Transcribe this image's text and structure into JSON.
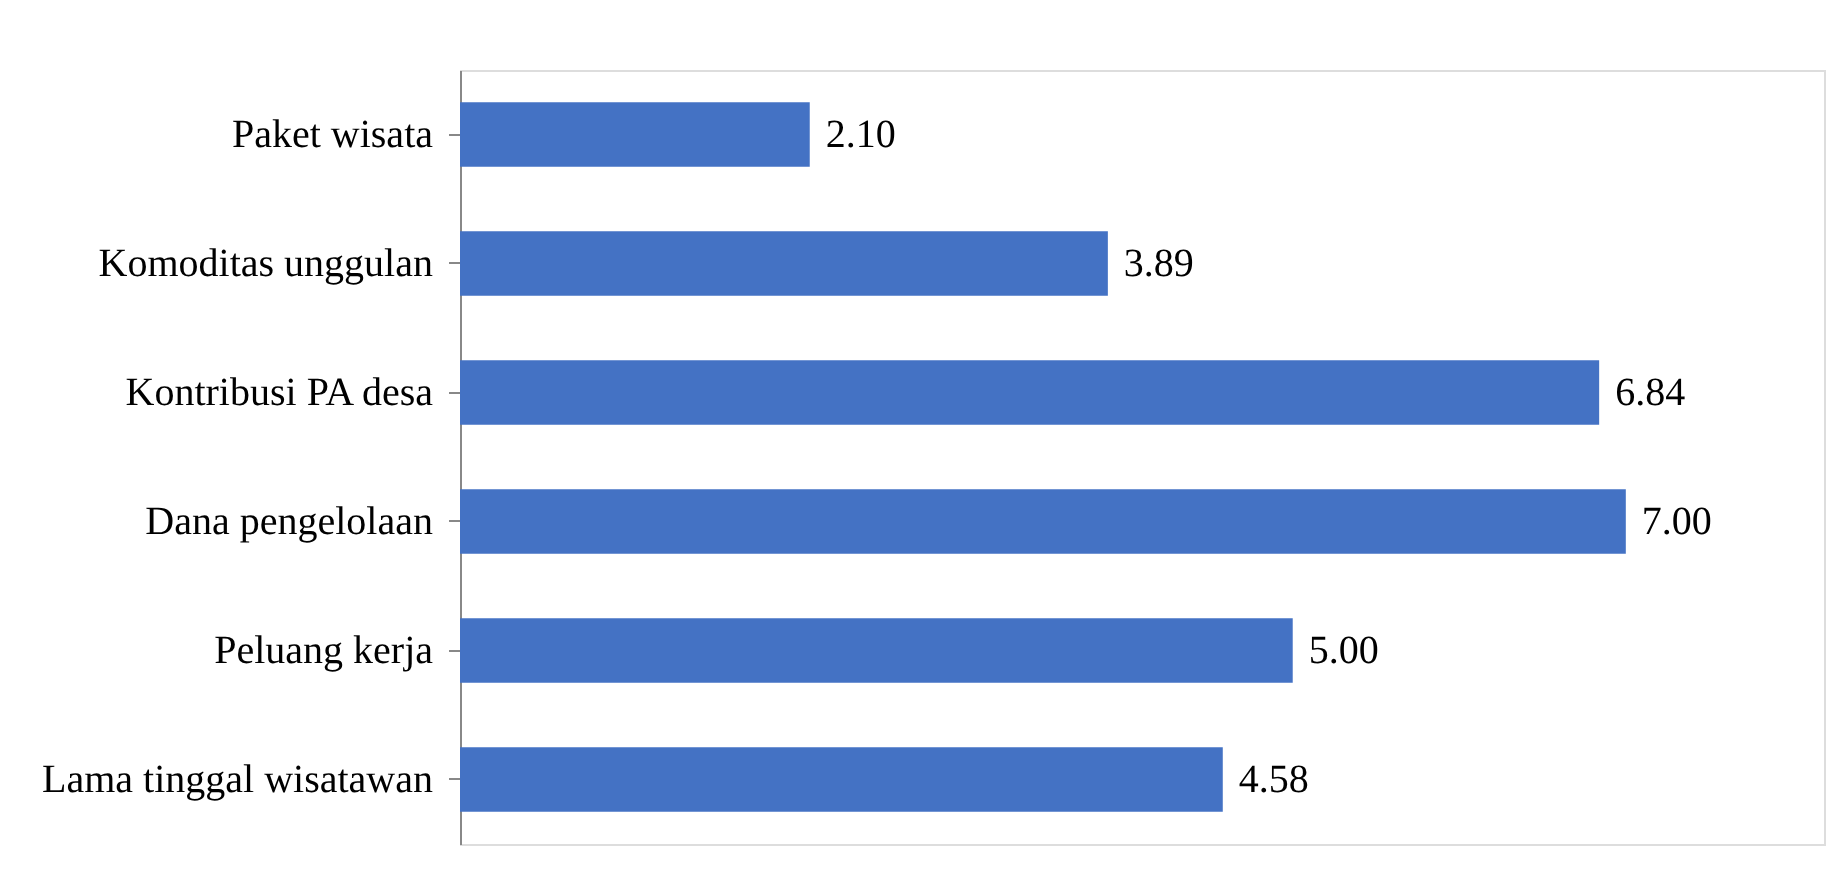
{
  "chart_data": {
    "type": "bar",
    "orientation": "horizontal",
    "categories": [
      "Paket wisata",
      "Komoditas unggulan",
      "Kontribusi PA desa",
      "Dana pengelolaan",
      "Peluang kerja",
      "Lama tinggal wisatawan"
    ],
    "values": [
      2.1,
      3.89,
      6.84,
      7.0,
      5.0,
      4.58
    ],
    "value_labels": [
      "2.10",
      "3.89",
      "6.84",
      "7.00",
      "5.00",
      "4.58"
    ],
    "color": "#4472c4",
    "grid": false,
    "tick_labels": "y"
  }
}
